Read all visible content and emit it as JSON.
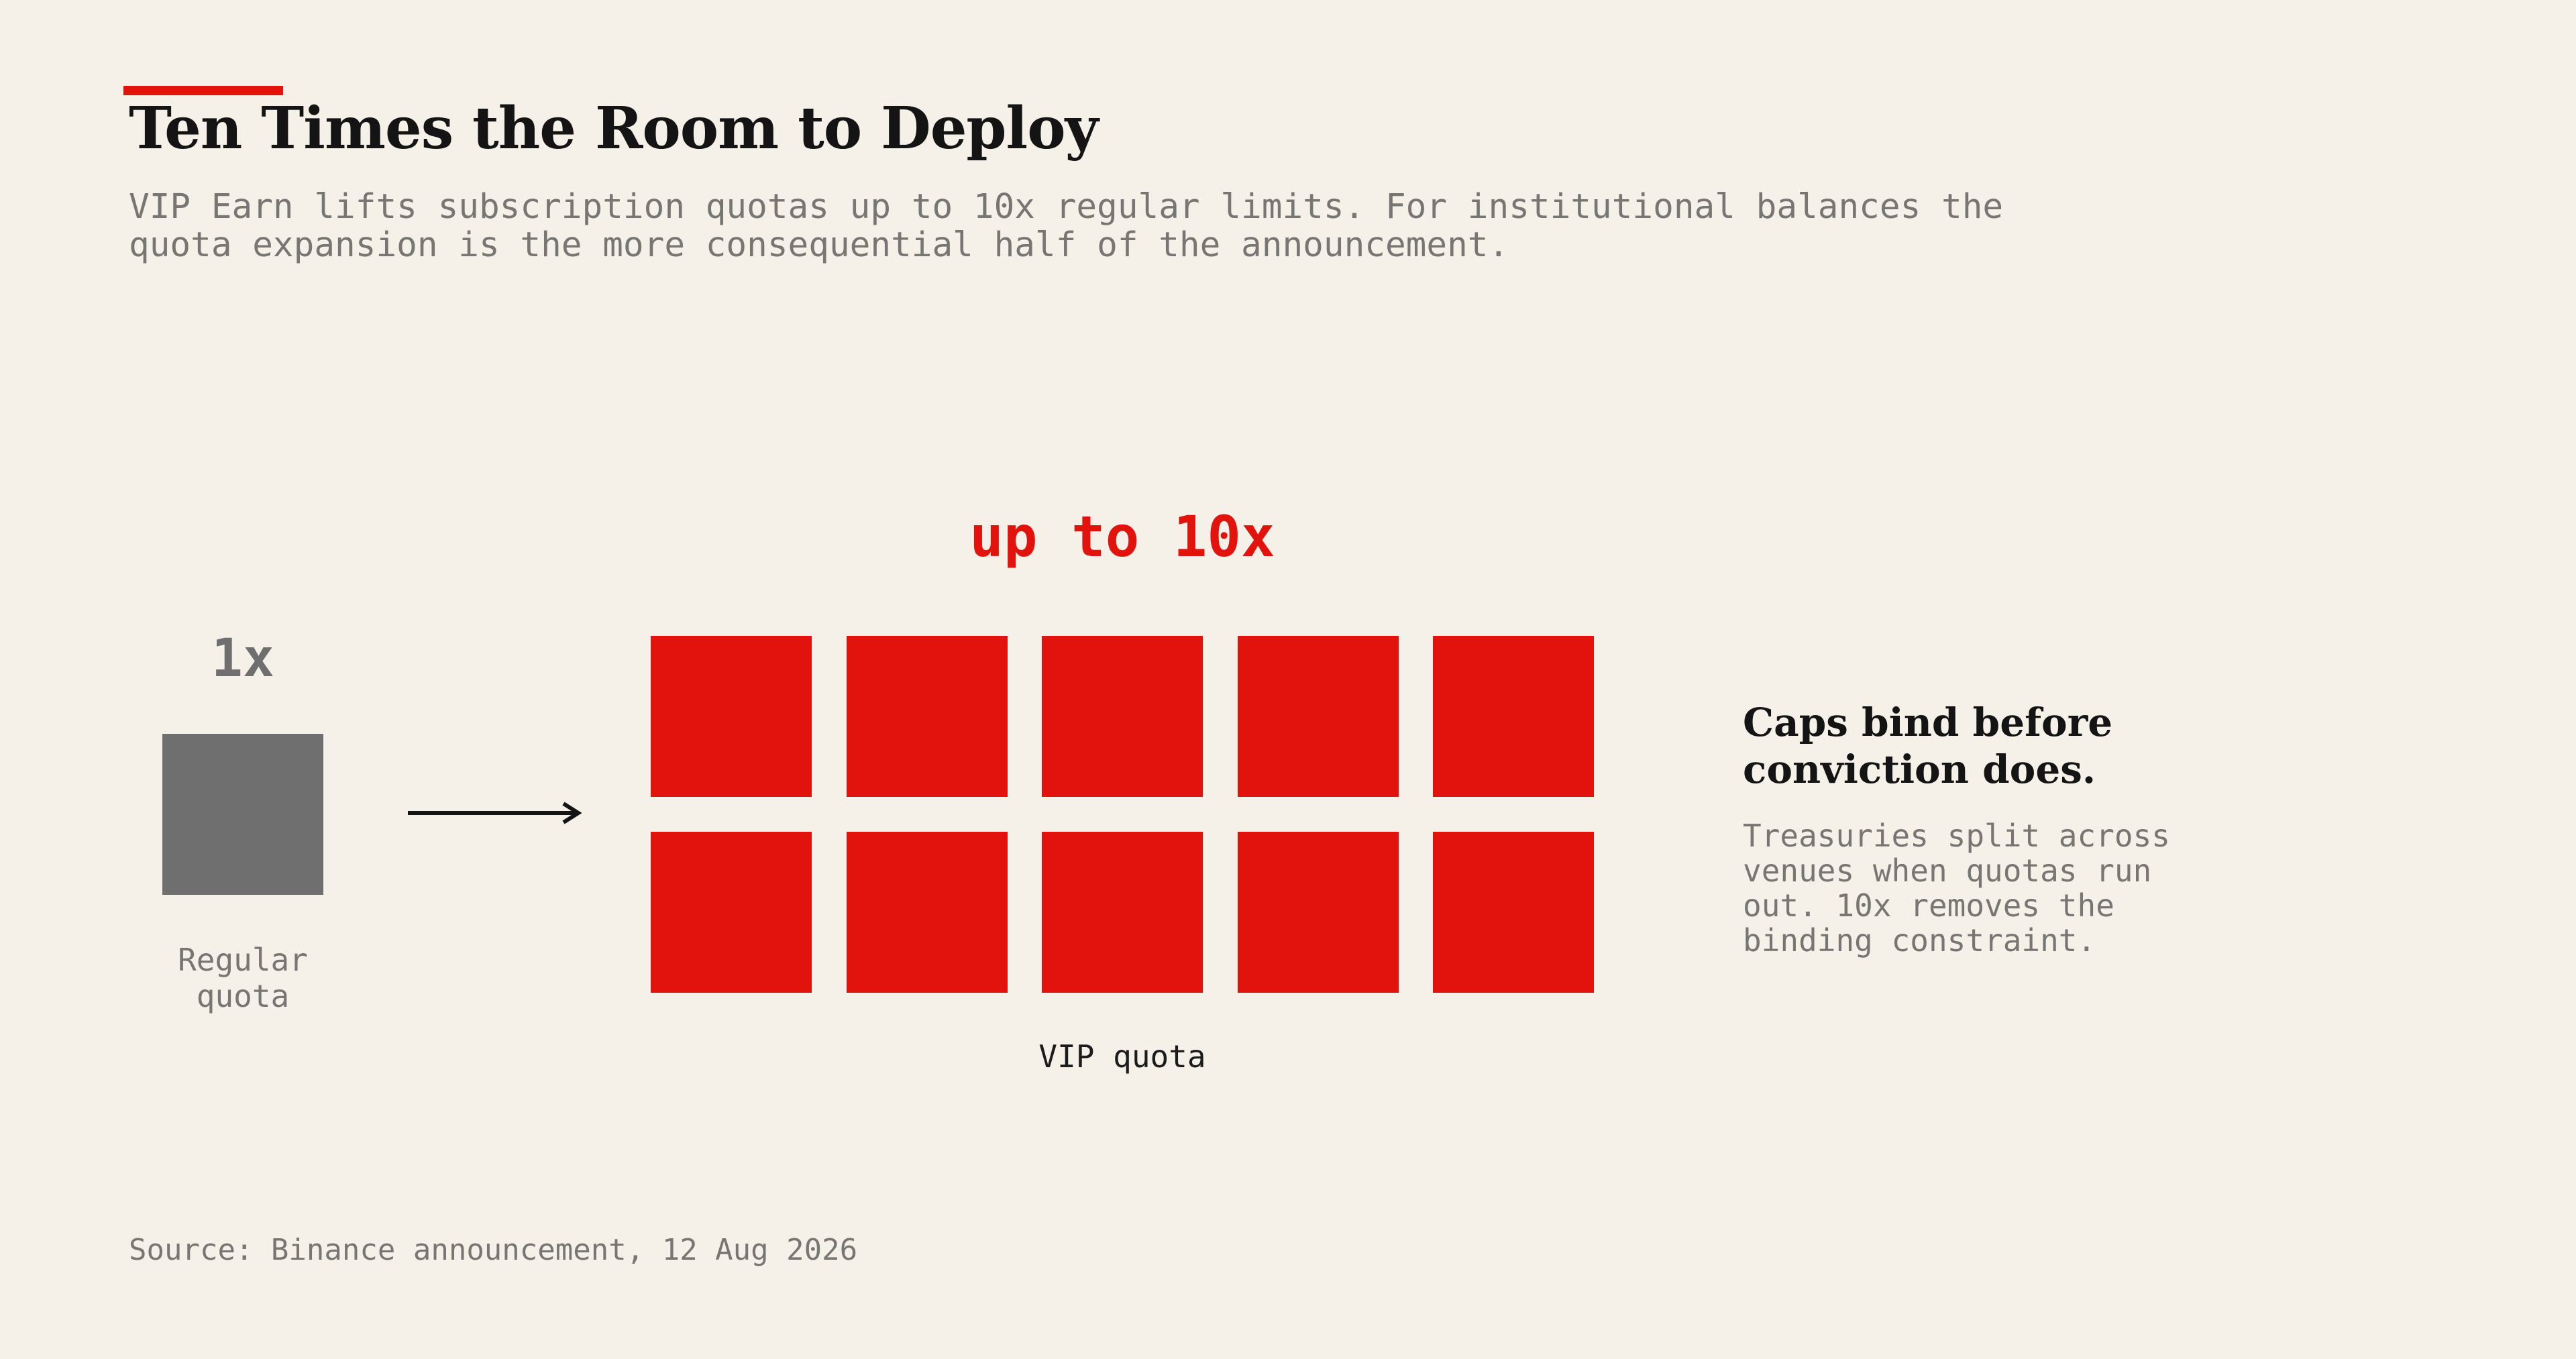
{
  "header": {
    "title": "Ten Times the Room to Deploy",
    "subtitle": "VIP Earn lifts subscription quotas up to 10x regular limits. For institutional balances the quota expansion is the more consequential half of the announcement."
  },
  "diagram": {
    "regular": {
      "multiplier_label": "1x",
      "caption": "Regular quota",
      "units": 1
    },
    "vip": {
      "multiplier_label": "up to 10x",
      "caption": "VIP quota",
      "units": 10
    }
  },
  "sidebar": {
    "heading": "Caps bind before conviction does.",
    "body": "Treasuries split across venues when quotas run out. 10x removes the binding constraint."
  },
  "footer": {
    "source": "Source: Binance announcement, 12 Aug 2026"
  },
  "colors": {
    "background": "#f5f0e8",
    "accent": "#e2120c",
    "regular": "#6f6f6f",
    "text": "#141414",
    "muted": "#787672"
  }
}
